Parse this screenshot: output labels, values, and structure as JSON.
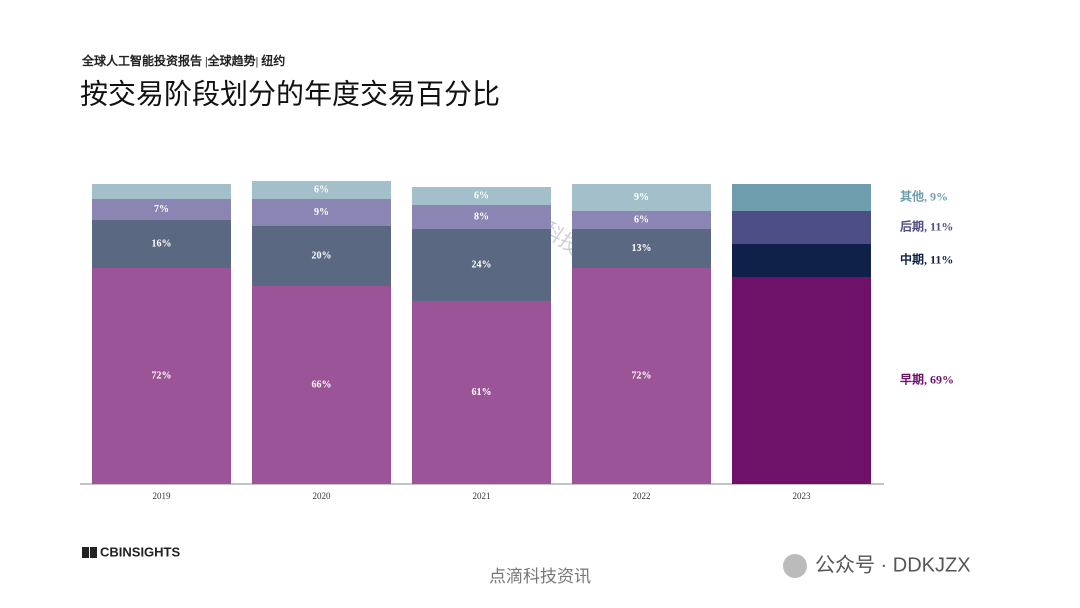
{
  "chart_data": {
    "type": "stacked-bar",
    "subtitle": "全球人工智能投资报告 |全球趋势| 纽约",
    "title": "按交易阶段划分的年度交易百分比",
    "categories": [
      "2019",
      "2020",
      "2021",
      "2022",
      "2023"
    ],
    "ylim": [
      0,
      100
    ],
    "series": [
      {
        "name": "早期, 69%",
        "colors": [
          "#9b5497",
          "#9b5497",
          "#9b5497",
          "#9b5497",
          "#6d1169"
        ],
        "values": [
          72,
          66,
          61,
          72,
          69
        ],
        "value_labels": [
          "72%",
          "66%",
          "61%",
          "72%",
          null
        ]
      },
      {
        "name": "中期, 11%",
        "colors": [
          "#5a6882",
          "#5a6882",
          "#5a6882",
          "#5a6882",
          "#0f2149"
        ],
        "values": [
          16,
          20,
          24,
          13,
          11
        ],
        "value_labels": [
          "16%",
          "20%",
          "24%",
          "13%",
          null
        ]
      },
      {
        "name": "后期, 11%",
        "colors": [
          "#8a85b3",
          "#8a85b3",
          "#8a85b3",
          "#8a85b3",
          "#4e4e87"
        ],
        "values": [
          7,
          9,
          8,
          6,
          11
        ],
        "value_labels": [
          "7%",
          "9%",
          "8%",
          "6%",
          null
        ]
      },
      {
        "name": "其他, 9%",
        "colors": [
          "#a3bfca",
          "#a3bfca",
          "#a3bfca",
          "#a3bfca",
          "#6e9dae"
        ],
        "values": [
          5,
          6,
          6,
          9,
          9
        ],
        "value_labels": [
          null,
          "6%",
          "6%",
          "9%",
          null
        ]
      }
    ]
  },
  "logo": "CBINSIGHTS",
  "watermark": "点滴科技资讯",
  "account": "公众号 · DDKJZX"
}
